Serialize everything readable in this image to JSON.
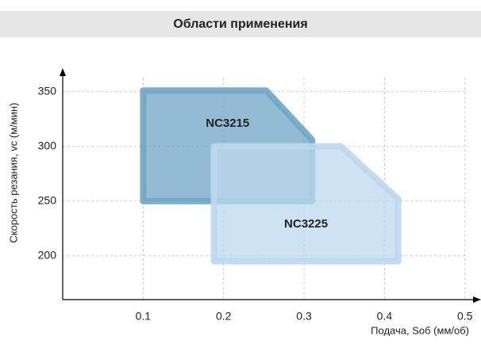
{
  "chart_data": {
    "type": "region",
    "title": "Области применения",
    "x_label": "Подача, Sоб (мм/об)",
    "y_label": "Скорость резания, vc (м/мин)",
    "xlim": [
      0,
      0.52
    ],
    "ylim": [
      160,
      370
    ],
    "xticks": [
      0.1,
      0.2,
      0.3,
      0.4,
      0.5
    ],
    "yticks": [
      200,
      250,
      300,
      350
    ],
    "grid": true,
    "series": [
      {
        "name": "NC3215",
        "color": "#6fa6c6",
        "x": [
          0.1,
          0.253,
          0.31,
          0.31,
          0.1
        ],
        "values": [
          351,
          351,
          306,
          250,
          250
        ]
      },
      {
        "name": "NC3225",
        "color": "#bcd8ee",
        "x": [
          0.188,
          0.346,
          0.417,
          0.417,
          0.188
        ],
        "values": [
          300,
          300,
          252,
          195,
          195
        ]
      }
    ]
  }
}
